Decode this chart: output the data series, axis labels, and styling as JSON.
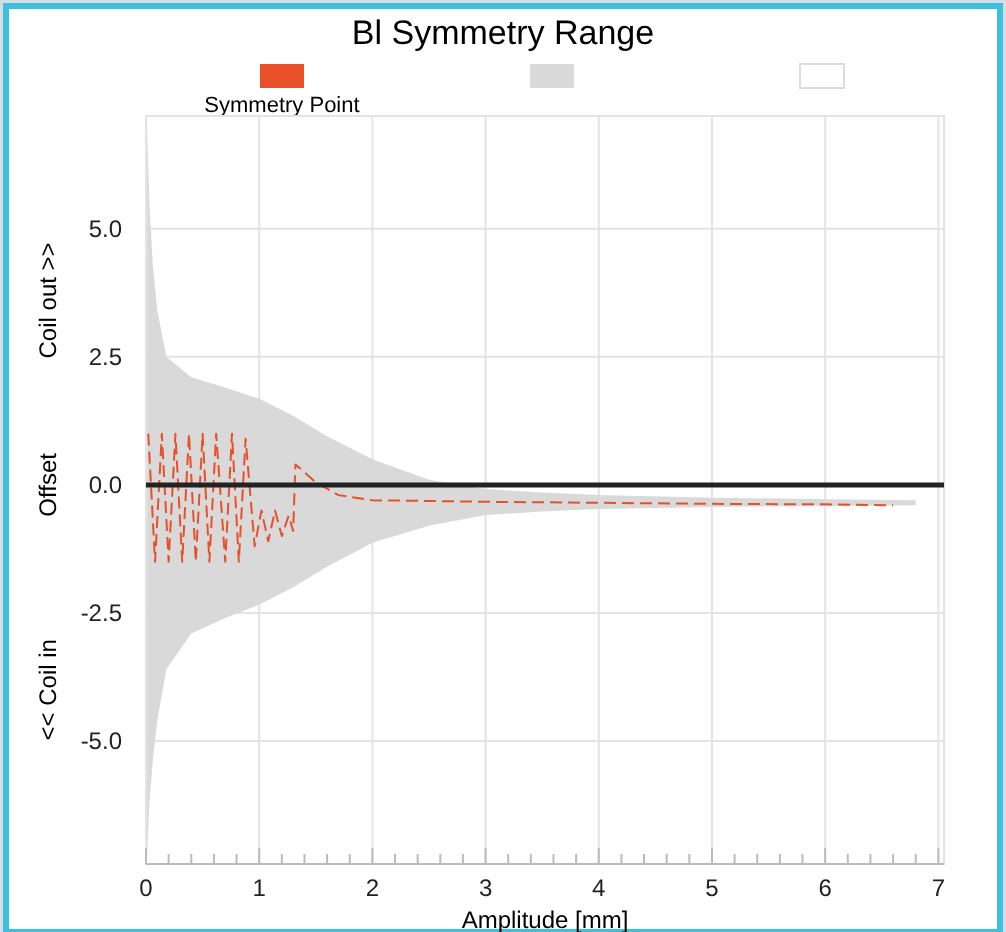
{
  "chart_data": {
    "type": "line",
    "title": "Bl Symmetry Range",
    "xlabel": "Amplitude [mm]",
    "ylabel": "Offset",
    "annotations": [
      "Coil out >>",
      "<< Coil in"
    ],
    "xlim": [
      0,
      7.05
    ],
    "ylim": [
      -7.4,
      7.2
    ],
    "xticks": [
      0,
      {
        "value": 0.2,
        "label": null
      },
      {
        "value": 0.4,
        "label": null
      },
      {
        "value": 0.6,
        "label": null
      },
      {
        "value": 0.8,
        "label": null
      },
      1,
      {
        "value": 1.2,
        "label": null
      },
      {
        "value": 1.4,
        "label": null
      },
      {
        "value": 1.6,
        "label": null
      },
      {
        "value": 1.8,
        "label": null
      },
      2,
      {
        "value": 2.2,
        "label": null
      },
      {
        "value": 2.4,
        "label": null
      },
      {
        "value": 2.6,
        "label": null
      },
      {
        "value": 2.8,
        "label": null
      },
      3,
      {
        "value": 3.2,
        "label": null
      },
      {
        "value": 3.4,
        "label": null
      },
      {
        "value": 3.6,
        "label": null
      },
      {
        "value": 3.8,
        "label": null
      },
      4,
      {
        "value": 4.2,
        "label": null
      },
      {
        "value": 4.4,
        "label": null
      },
      {
        "value": 4.6,
        "label": null
      },
      {
        "value": 4.8,
        "label": null
      },
      5,
      {
        "value": 5.2,
        "label": null
      },
      {
        "value": 5.4,
        "label": null
      },
      {
        "value": 5.6,
        "label": null
      },
      {
        "value": 5.8,
        "label": null
      },
      6,
      {
        "value": 6.2,
        "label": null
      },
      {
        "value": 6.4,
        "label": null
      },
      {
        "value": 6.6,
        "label": null
      },
      {
        "value": 6.8,
        "label": null
      },
      7
    ],
    "yticks": [
      {
        "value": -5,
        "label": "-5.0"
      },
      {
        "value": -2.5,
        "label": "-2.5"
      },
      {
        "value": 0,
        "label": "0.0"
      },
      {
        "value": 2.5,
        "label": "2.5"
      },
      {
        "value": 5,
        "label": "5.0"
      }
    ],
    "grid": true,
    "legend": "top",
    "line_style": "dashed",
    "ref_lines": [
      {
        "axis": "y",
        "value": 0,
        "color": "#222222",
        "line_style": "solid"
      }
    ],
    "series": [
      {
        "name": "Symmetry Point",
        "color": "#e8502a",
        "x": [
          0.02,
          0.08,
          0.14,
          0.2,
          0.26,
          0.32,
          0.38,
          0.44,
          0.5,
          0.56,
          0.62,
          0.7,
          0.76,
          0.82,
          0.88,
          0.96,
          1.02,
          1.08,
          1.14,
          1.2,
          1.26,
          1.3,
          1.32,
          1.5,
          1.7,
          2.0,
          3.0,
          4.0,
          5.0,
          6.0,
          6.6
        ],
        "values": [
          1.0,
          -1.5,
          1.0,
          -1.5,
          1.0,
          -1.5,
          1.0,
          -1.5,
          1.0,
          -1.5,
          1.0,
          -1.5,
          1.0,
          -1.5,
          0.9,
          -1.2,
          -0.5,
          -1.1,
          -0.5,
          -1.0,
          -0.6,
          -0.9,
          0.4,
          0.05,
          -0.2,
          -0.3,
          -0.33,
          -0.35,
          -0.37,
          -0.38,
          -0.4
        ]
      },
      {
        "color": "#d9d9d9",
        "type": "area",
        "x": [
          0.01,
          0.03,
          0.06,
          0.1,
          0.18,
          0.4,
          0.7,
          1.0,
          1.3,
          1.6,
          2.0,
          2.5,
          3.0,
          3.5,
          4.0,
          5.0,
          6.0,
          6.8
        ],
        "values": [
          null,
          null,
          null,
          null,
          null,
          null,
          null,
          null,
          null,
          null,
          null,
          null,
          null,
          null,
          null,
          null,
          null,
          null
        ],
        "upper": [
          7.0,
          5.5,
          4.3,
          3.4,
          2.5,
          2.1,
          1.9,
          1.68,
          1.35,
          0.95,
          0.5,
          0.1,
          -0.08,
          -0.15,
          -0.2,
          -0.25,
          -0.28,
          -0.3
        ],
        "lower": [
          -7.3,
          -6.2,
          -5.4,
          -4.6,
          -3.6,
          -2.9,
          -2.6,
          -2.34,
          -2.0,
          -1.6,
          -1.13,
          -0.8,
          -0.59,
          -0.52,
          -0.47,
          -0.43,
          -0.41,
          -0.4
        ]
      }
    ]
  }
}
